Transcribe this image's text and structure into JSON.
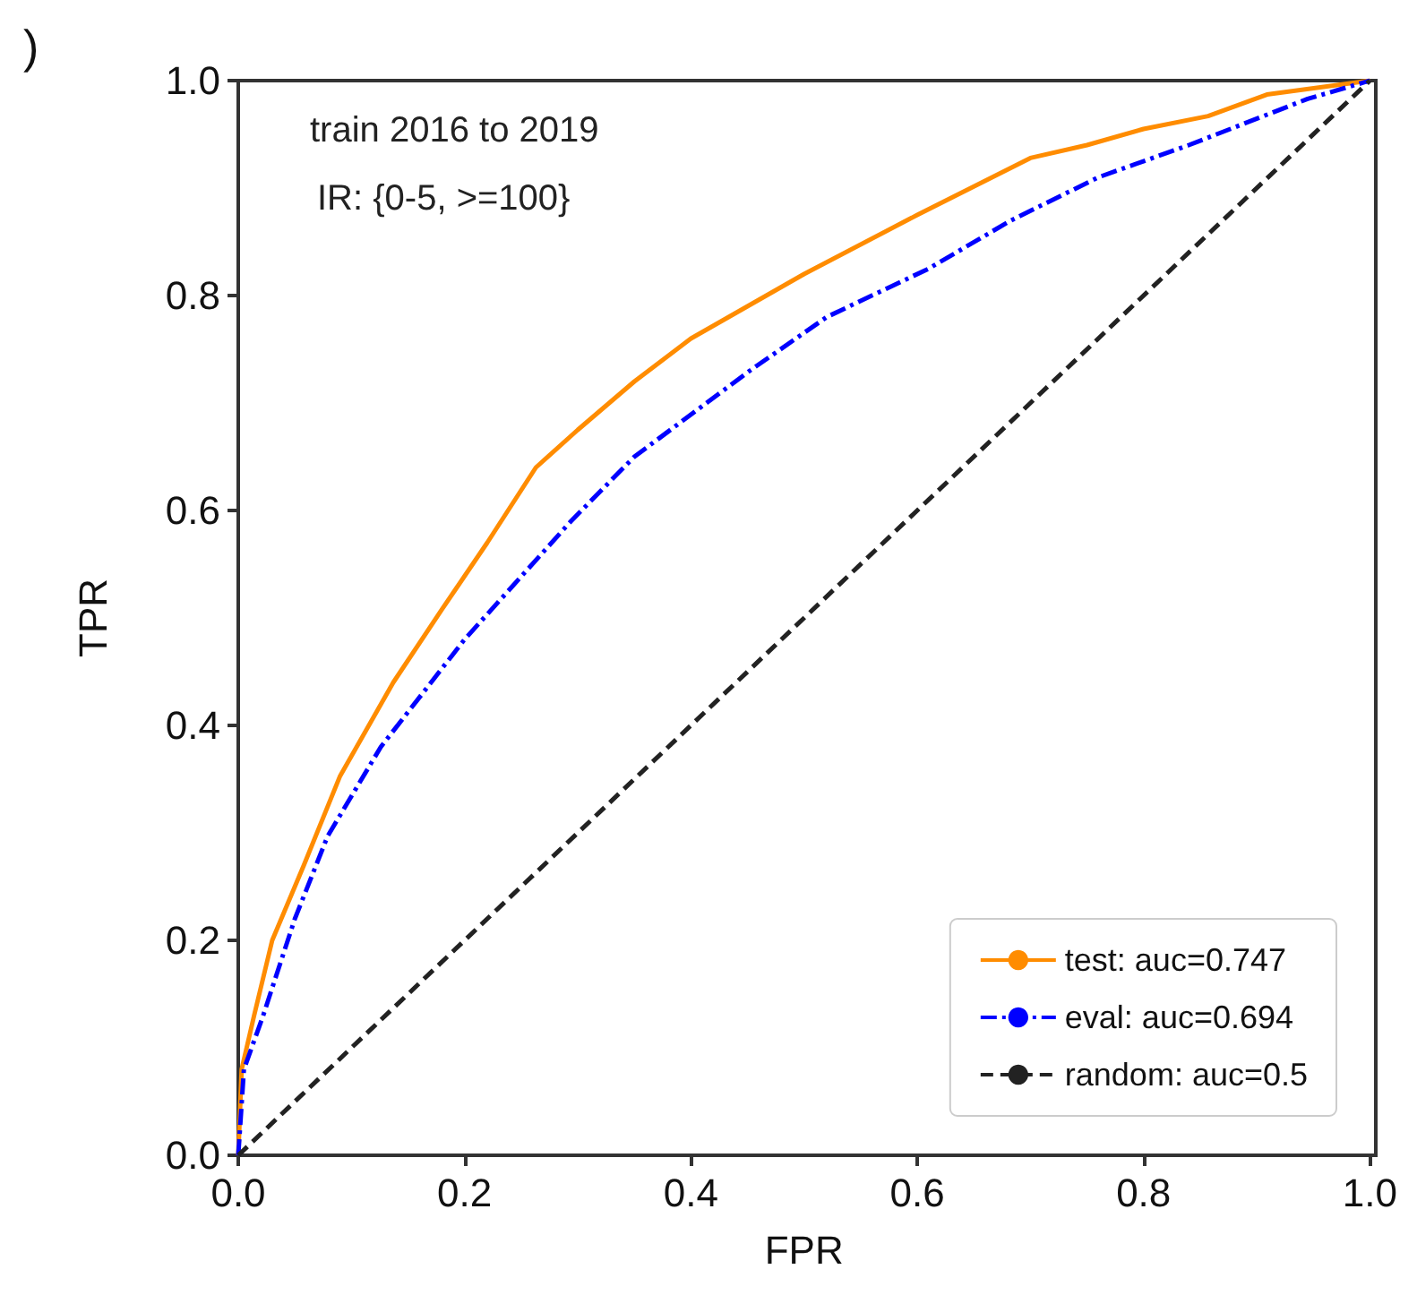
{
  "chart_data": {
    "type": "line",
    "title": ")",
    "xlabel": "FPR",
    "ylabel": "TPR",
    "annotations": [
      "train 2016 to 2019",
      "IR: {0-5, >=100}"
    ],
    "series": [
      {
        "name": "test: auc=0.747",
        "color": "#ff8c00",
        "line_style": "solid",
        "x": [
          0,
          0.003,
          0.014,
          0.03,
          0.058,
          0.09,
          0.137,
          0.18,
          0.22,
          0.263,
          0.3,
          0.35,
          0.4,
          0.5,
          0.6,
          0.7,
          0.75,
          0.8,
          0.857,
          0.909,
          1
        ],
        "values": [
          0,
          0.08,
          0.13,
          0.2,
          0.27,
          0.353,
          0.44,
          0.508,
          0.57,
          0.64,
          0.675,
          0.72,
          0.76,
          0.82,
          0.875,
          0.928,
          0.94,
          0.955,
          0.967,
          0.987,
          1
        ]
      },
      {
        "name": "eval: auc=0.694",
        "color": "#0000ff",
        "line_style": "dashdot",
        "x": [
          0,
          0.005,
          0.022,
          0.05,
          0.079,
          0.126,
          0.2,
          0.294,
          0.35,
          0.452,
          0.52,
          0.61,
          0.683,
          0.76,
          0.84,
          0.945,
          1
        ],
        "values": [
          0,
          0.08,
          0.13,
          0.22,
          0.297,
          0.38,
          0.48,
          0.59,
          0.65,
          0.73,
          0.78,
          0.825,
          0.87,
          0.91,
          0.94,
          0.983,
          1
        ]
      },
      {
        "name": "random: auc=0.5",
        "color": "#222222",
        "line_style": "dashed",
        "x": [
          0,
          1
        ],
        "values": [
          0,
          1
        ]
      }
    ],
    "xlim": [
      0,
      1
    ],
    "ylim": [
      0,
      1
    ],
    "xticks": [
      {
        "value": 0,
        "label": "0.0"
      },
      {
        "value": 0.2,
        "label": "0.2"
      },
      {
        "value": 0.4,
        "label": "0.4"
      },
      {
        "value": 0.6,
        "label": "0.6"
      },
      {
        "value": 0.8,
        "label": "0.8"
      },
      {
        "value": 1,
        "label": "1.0"
      }
    ],
    "yticks": [
      {
        "value": 0,
        "label": "0.0"
      },
      {
        "value": 0.2,
        "label": "0.2"
      },
      {
        "value": 0.4,
        "label": "0.4"
      },
      {
        "value": 0.6,
        "label": "0.6"
      },
      {
        "value": 0.8,
        "label": "0.8"
      },
      {
        "value": 1,
        "label": "1.0"
      }
    ],
    "grid": false,
    "legend": "bottom right",
    "marker": "none"
  }
}
